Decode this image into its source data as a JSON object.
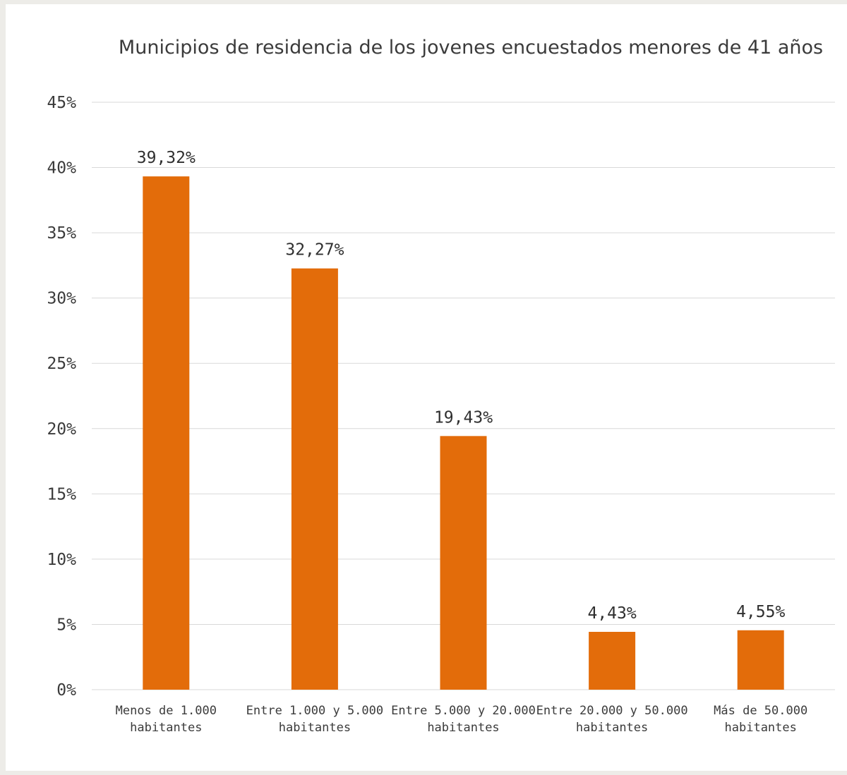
{
  "chart_data": {
    "type": "bar",
    "title": "Municipios de residencia de los jovenes encuestados menores de 41 años",
    "categories": [
      [
        "Menos de 1.000",
        "habitantes"
      ],
      [
        "Entre 1.000 y 5.000",
        "habitantes"
      ],
      [
        "Entre 5.000 y 20.000",
        "habitantes"
      ],
      [
        "Entre 20.000 y 50.000",
        "habitantes"
      ],
      [
        "Más de 50.000",
        "habitantes"
      ]
    ],
    "values": [
      39.32,
      32.27,
      19.43,
      4.43,
      4.55
    ],
    "data_labels": [
      "39,32%",
      "32,27%",
      "19,43%",
      "4,43%",
      "4,55%"
    ],
    "yticks": [
      0,
      5,
      10,
      15,
      20,
      25,
      30,
      35,
      40,
      45
    ],
    "ytick_labels": [
      "0%",
      "5%",
      "10%",
      "15%",
      "20%",
      "25%",
      "30%",
      "35%",
      "40%",
      "45%"
    ],
    "ylim": [
      0,
      45
    ],
    "grid": true,
    "legend": "none",
    "bar_color": "#e36c0a"
  }
}
